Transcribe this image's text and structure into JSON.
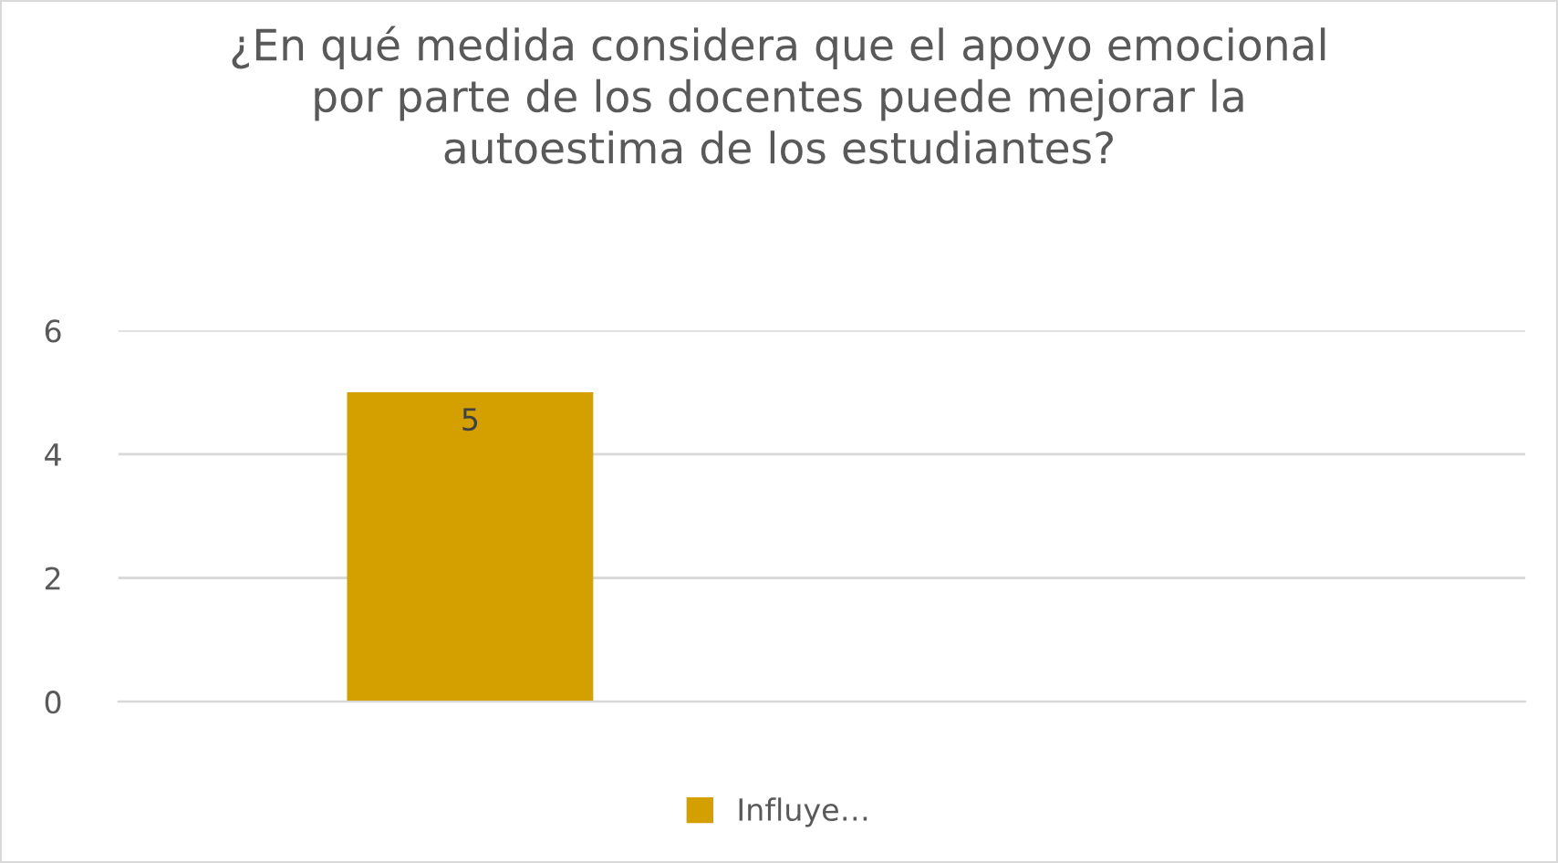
{
  "chart_data": {
    "type": "bar",
    "title": "¿En qué medida considera que el apoyo emocional\npor parte de los docentes puede mejorar la\nautoestima de los estudiantes?",
    "categories": [
      null,
      null
    ],
    "series": [
      {
        "name": "Influye…",
        "color": "#d4a000",
        "values": [
          5,
          null
        ]
      }
    ],
    "ylim": [
      0,
      6
    ],
    "yticks": [
      0,
      2,
      4,
      6
    ],
    "grid": "y",
    "legend": "bottom",
    "data_labels": true
  }
}
